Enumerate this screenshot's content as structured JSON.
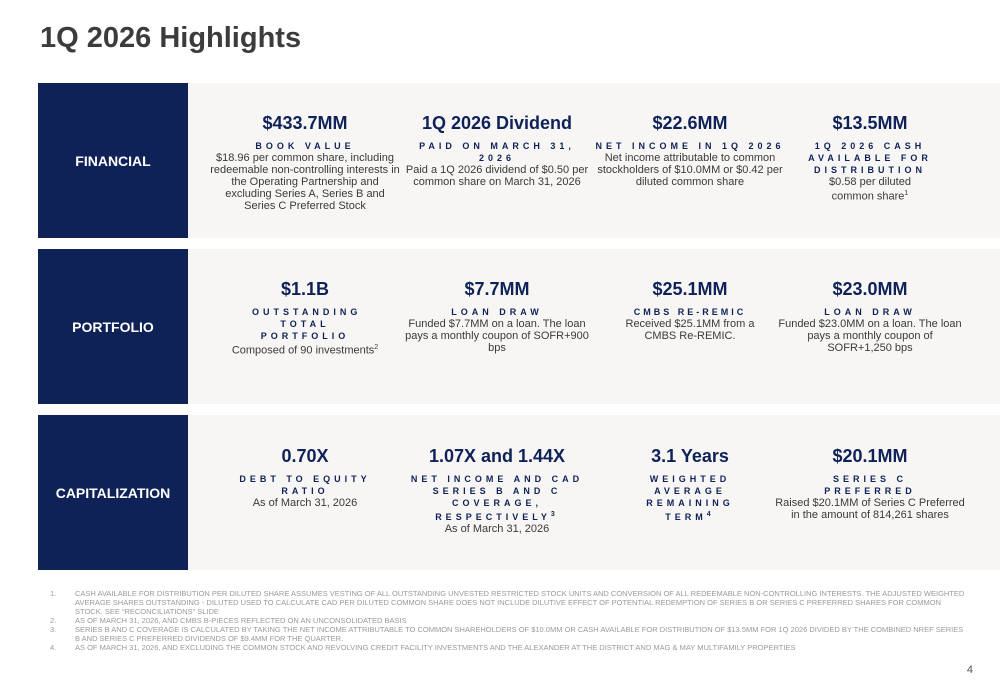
{
  "title": "1Q 2026 Highlights",
  "sections": [
    {
      "label": "FINANCIAL",
      "items": [
        {
          "value": "$433.7MM",
          "caption": "BOOK VALUE",
          "sup": "",
          "desc": "$18.96 per common share, including redeemable non-controlling interests in the Operating Partnership and excluding Series A, Series B and Series C Preferred Stock",
          "desc_sup": ""
        },
        {
          "value": "1Q 2026 Dividend",
          "caption": "PAID ON MARCH 31, 2026",
          "sup": "",
          "desc": "Paid a 1Q 2026 dividend of $0.50 per common share on March 31, 2026",
          "desc_sup": ""
        },
        {
          "value": "$22.6MM",
          "caption": "NET INCOME IN 1Q 2026",
          "sup": "",
          "desc": "Net income attributable to common stockholders of $10.0MM or $0.42 per diluted common share",
          "desc_sup": ""
        },
        {
          "value": "$13.5MM",
          "caption": "1Q 2026 CASH AVAILABLE FOR DISTRIBUTION",
          "sup": "",
          "desc": "$0.58 per diluted common share",
          "desc_sup": "1"
        }
      ]
    },
    {
      "label": "PORTFOLIO",
      "items": [
        {
          "value": "$1.1B",
          "caption": "OUTSTANDING TOTAL PORTFOLIO",
          "sup": "",
          "desc": "Composed of 90 investments",
          "desc_sup": "2"
        },
        {
          "value": "$7.7MM",
          "caption": "LOAN DRAW",
          "sup": "",
          "desc": "Funded $7.7MM on a loan. The loan pays a monthly coupon of SOFR+900 bps",
          "desc_sup": ""
        },
        {
          "value": "$25.1MM",
          "caption": "CMBS RE-REMIC",
          "sup": "",
          "desc": "Received $25.1MM from a CMBS Re-REMIC.",
          "desc_sup": ""
        },
        {
          "value": "$23.0MM",
          "caption": "LOAN DRAW",
          "sup": "",
          "desc": "Funded $23.0MM on a loan. The loan pays a monthly coupon of SOFR+1,250 bps",
          "desc_sup": ""
        }
      ]
    },
    {
      "label": "CAPITALIZATION",
      "items": [
        {
          "value": "0.70X",
          "caption": "DEBT TO EQUITY RATIO",
          "sup": "",
          "desc": "As of March 31, 2026",
          "desc_sup": ""
        },
        {
          "value": "1.07X and 1.44X",
          "caption": "NET INCOME AND CAD SERIES B AND C COVERAGE, RESPECTIVELY",
          "sup": "3",
          "desc": "As of March 31, 2026",
          "desc_sup": ""
        },
        {
          "value": "3.1 Years",
          "caption": "WEIGHTED AVERAGE REMAINING TERM",
          "sup": "4",
          "desc": "",
          "desc_sup": ""
        },
        {
          "value": "$20.1MM",
          "caption": "SERIES C PREFERRED",
          "sup": "",
          "desc": "Raised $20.1MM of Series C Preferred in the amount of 814,261 shares",
          "desc_sup": ""
        }
      ]
    }
  ],
  "footnotes": [
    {
      "num": "1.",
      "text": "CASH AVAILABLE FOR DISTRIBUTION PER DILUTED SHARE ASSUMES VESTING OF ALL OUTSTANDING UNVESTED RESTRICTED STOCK UNITS AND CONVERSION OF ALL REDEEMABLE NON-CONTROLLING INTERESTS. THE ADJUSTED WEIGHTED AVERAGE SHARES OUTSTANDING - DILUTED USED TO CALCULATE CAD PER DILUTED COMMON SHARE DOES NOT INCLUDE DILUTIVE EFFECT OF POTENTIAL REDEMPTION OF SERIES B OR SERIES C PREFERRED SHARES FOR COMMON STOCK. SEE “RECONCILIATIONS” SLIDE"
    },
    {
      "num": "2.",
      "text": "AS OF MARCH 31, 2026, AND CMBS B-PIECES REFLECTED ON AN UNCONSOLIDATED BASIS"
    },
    {
      "num": "3.",
      "text": "SERIES B AND C COVERAGE IS CALCULATED BY TAKING THE NET INCOME ATTRIBUTABLE TO COMMON SHAREHOLDERS OF $10.0MM OR CASH AVAILABLE FOR DISTRIBUTION OF $13.5MM FOR 1Q 2026 DIVIDED BY THE COMBINED NREF SERIES B AND SERIES C PREFERRED DIVIDENDS OF $9.4MM FOR THE QUARTER."
    },
    {
      "num": "4.",
      "text": "AS OF MARCH 31, 2026, AND EXCLUDING THE COMMON STOCK AND REVOLVING CREDIT FACILITY INVESTMENTS AND THE ALEXANDER AT THE DISTRICT AND MAG & MAY MULTIFAMILY PROPERTIES"
    }
  ],
  "page_number": "4",
  "colors": {
    "navy": "#0f2258",
    "band_bg": "#f7f6f5"
  }
}
